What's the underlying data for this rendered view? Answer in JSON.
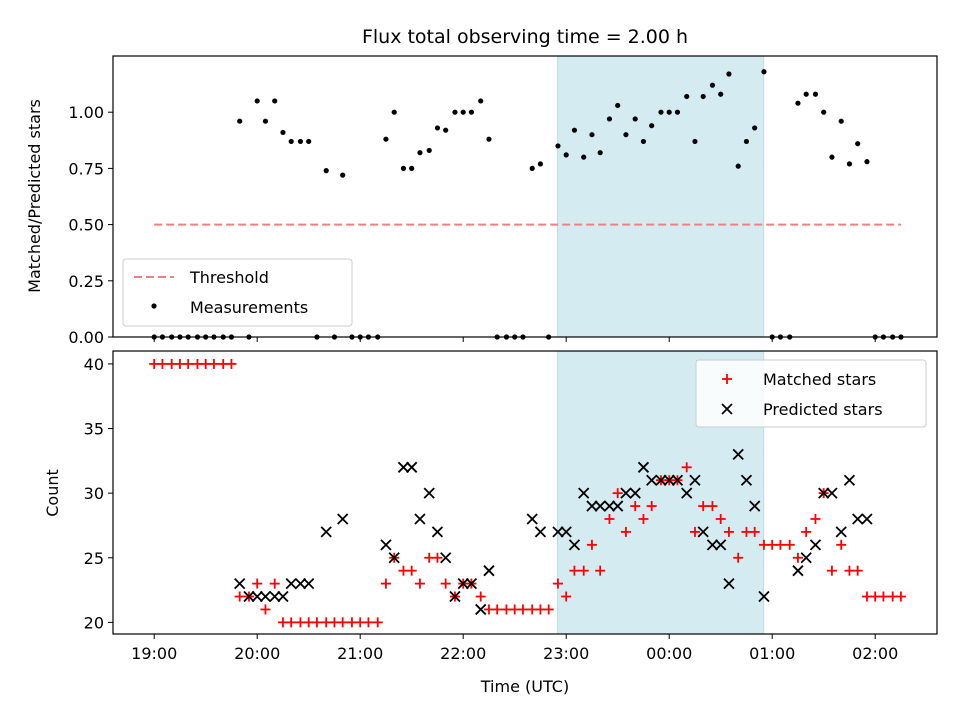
{
  "chart_data": [
    {
      "type": "scatter",
      "title": "Flux total observing time = 2.00 h",
      "xlabel": "",
      "ylabel": "Matched/Predicted stars",
      "x_unit": "hours (UTC, continuing past midnight)",
      "xlim": [
        18.6,
        26.6
      ],
      "ylim": [
        0,
        1.25
      ],
      "yticks": [
        "0.00",
        "0.25",
        "0.50",
        "0.75",
        "1.00"
      ],
      "shaded_span": {
        "start": "22:55",
        "end": "00:55",
        "color": "#d4ebf1"
      },
      "threshold": {
        "name": "Threshold",
        "value": 0.5,
        "x_range": [
          19.0,
          26.25
        ],
        "color": "#f08080"
      },
      "legend": {
        "position": "lower-left",
        "entries": [
          "Threshold",
          "Measurements"
        ]
      },
      "series": [
        {
          "name": "Measurements",
          "color": "#000000",
          "points": [
            [
              19.0,
              0
            ],
            [
              19.08,
              0
            ],
            [
              19.17,
              0
            ],
            [
              19.25,
              0
            ],
            [
              19.33,
              0
            ],
            [
              19.42,
              0
            ],
            [
              19.5,
              0
            ],
            [
              19.58,
              0
            ],
            [
              19.67,
              0
            ],
            [
              19.75,
              0
            ],
            [
              19.83,
              0.96
            ],
            [
              19.92,
              0
            ],
            [
              20.0,
              1.05
            ],
            [
              20.08,
              0.96
            ],
            [
              20.17,
              1.05
            ],
            [
              20.25,
              0.91
            ],
            [
              20.33,
              0.87
            ],
            [
              20.42,
              0.87
            ],
            [
              20.5,
              0.87
            ],
            [
              20.58,
              0
            ],
            [
              20.67,
              0.74
            ],
            [
              20.75,
              0
            ],
            [
              20.83,
              0.72
            ],
            [
              20.92,
              0
            ],
            [
              21.0,
              0
            ],
            [
              21.08,
              0
            ],
            [
              21.17,
              0
            ],
            [
              21.25,
              0.88
            ],
            [
              21.33,
              1.0
            ],
            [
              21.42,
              0.75
            ],
            [
              21.5,
              0.75
            ],
            [
              21.58,
              0.82
            ],
            [
              21.67,
              0.83
            ],
            [
              21.75,
              0.93
            ],
            [
              21.83,
              0.92
            ],
            [
              21.92,
              1.0
            ],
            [
              22.0,
              1.0
            ],
            [
              22.08,
              1.0
            ],
            [
              22.17,
              1.05
            ],
            [
              22.25,
              0.88
            ],
            [
              22.33,
              0
            ],
            [
              22.42,
              0
            ],
            [
              22.5,
              0
            ],
            [
              22.58,
              0
            ],
            [
              22.67,
              0.75
            ],
            [
              22.75,
              0.77
            ],
            [
              22.83,
              0
            ],
            [
              22.92,
              0.85
            ],
            [
              23.0,
              0.81
            ],
            [
              23.08,
              0.92
            ],
            [
              23.17,
              0.8
            ],
            [
              23.25,
              0.9
            ],
            [
              23.33,
              0.82
            ],
            [
              23.42,
              0.97
            ],
            [
              23.5,
              1.03
            ],
            [
              23.58,
              0.9
            ],
            [
              23.67,
              0.97
            ],
            [
              23.75,
              0.87
            ],
            [
              23.83,
              0.94
            ],
            [
              23.92,
              1.0
            ],
            [
              24.0,
              1.0
            ],
            [
              24.08,
              1.0
            ],
            [
              24.17,
              1.07
            ],
            [
              24.25,
              0.87
            ],
            [
              24.33,
              1.07
            ],
            [
              24.42,
              1.12
            ],
            [
              24.5,
              1.08
            ],
            [
              24.58,
              1.17
            ],
            [
              24.67,
              0.76
            ],
            [
              24.75,
              0.87
            ],
            [
              24.83,
              0.93
            ],
            [
              24.92,
              1.18
            ],
            [
              25.0,
              0
            ],
            [
              25.08,
              0
            ],
            [
              25.17,
              0
            ],
            [
              25.25,
              1.04
            ],
            [
              25.33,
              1.08
            ],
            [
              25.42,
              1.08
            ],
            [
              25.5,
              1.0
            ],
            [
              25.58,
              0.8
            ],
            [
              25.67,
              0.96
            ],
            [
              25.75,
              0.77
            ],
            [
              25.83,
              0.86
            ],
            [
              25.92,
              0.78
            ],
            [
              26.0,
              0
            ],
            [
              26.08,
              0
            ],
            [
              26.17,
              0
            ],
            [
              26.25,
              0
            ]
          ]
        }
      ]
    },
    {
      "type": "scatter",
      "title": "",
      "xlabel": "Time (UTC)",
      "ylabel": "Count",
      "x_unit": "hours (UTC, continuing past midnight)",
      "xlim": [
        18.6,
        26.6
      ],
      "ylim": [
        19.1,
        41.0
      ],
      "xticks": [
        {
          "value": 19,
          "label": "19:00"
        },
        {
          "value": 20,
          "label": "20:00"
        },
        {
          "value": 21,
          "label": "21:00"
        },
        {
          "value": 22,
          "label": "22:00"
        },
        {
          "value": 23,
          "label": "23:00"
        },
        {
          "value": 24,
          "label": "00:00"
        },
        {
          "value": 25,
          "label": "01:00"
        },
        {
          "value": 26,
          "label": "02:00"
        }
      ],
      "yticks": [
        "20",
        "25",
        "30",
        "35",
        "40"
      ],
      "shaded_span": {
        "start": "22:55",
        "end": "00:55",
        "color": "#d4ebf1"
      },
      "legend": {
        "position": "top-right",
        "entries": [
          "Matched stars",
          "Predicted stars"
        ]
      },
      "series": [
        {
          "name": "Matched stars",
          "marker": "plus",
          "color": "#ff0000",
          "points": [
            [
              19.0,
              40
            ],
            [
              19.08,
              40
            ],
            [
              19.17,
              40
            ],
            [
              19.25,
              40
            ],
            [
              19.33,
              40
            ],
            [
              19.42,
              40
            ],
            [
              19.5,
              40
            ],
            [
              19.58,
              40
            ],
            [
              19.67,
              40
            ],
            [
              19.75,
              40
            ],
            [
              19.83,
              22
            ],
            [
              19.92,
              22
            ],
            [
              20.0,
              23
            ],
            [
              20.08,
              21
            ],
            [
              20.17,
              23
            ],
            [
              20.25,
              20
            ],
            [
              20.33,
              20
            ],
            [
              20.42,
              20
            ],
            [
              20.5,
              20
            ],
            [
              20.58,
              20
            ],
            [
              20.67,
              20
            ],
            [
              20.75,
              20
            ],
            [
              20.83,
              20
            ],
            [
              20.92,
              20
            ],
            [
              21.0,
              20
            ],
            [
              21.08,
              20
            ],
            [
              21.17,
              20
            ],
            [
              21.25,
              23
            ],
            [
              21.33,
              25
            ],
            [
              21.42,
              24
            ],
            [
              21.5,
              24
            ],
            [
              21.58,
              23
            ],
            [
              21.67,
              25
            ],
            [
              21.75,
              25
            ],
            [
              21.83,
              23
            ],
            [
              21.92,
              22
            ],
            [
              22.0,
              23
            ],
            [
              22.08,
              23
            ],
            [
              22.17,
              22
            ],
            [
              22.25,
              21
            ],
            [
              22.33,
              21
            ],
            [
              22.42,
              21
            ],
            [
              22.5,
              21
            ],
            [
              22.58,
              21
            ],
            [
              22.67,
              21
            ],
            [
              22.75,
              21
            ],
            [
              22.83,
              21
            ],
            [
              22.92,
              23
            ],
            [
              23.0,
              22
            ],
            [
              23.08,
              24
            ],
            [
              23.17,
              24
            ],
            [
              23.25,
              26
            ],
            [
              23.33,
              24
            ],
            [
              23.42,
              28
            ],
            [
              23.5,
              30
            ],
            [
              23.58,
              27
            ],
            [
              23.67,
              29
            ],
            [
              23.75,
              28
            ],
            [
              23.83,
              29
            ],
            [
              23.92,
              31
            ],
            [
              24.0,
              31
            ],
            [
              24.08,
              31
            ],
            [
              24.17,
              32
            ],
            [
              24.25,
              27
            ],
            [
              24.33,
              29
            ],
            [
              24.42,
              29
            ],
            [
              24.5,
              28
            ],
            [
              24.58,
              27
            ],
            [
              24.67,
              25
            ],
            [
              24.75,
              27
            ],
            [
              24.83,
              27
            ],
            [
              24.92,
              26
            ],
            [
              25.0,
              26
            ],
            [
              25.08,
              26
            ],
            [
              25.17,
              26
            ],
            [
              25.25,
              25
            ],
            [
              25.33,
              27
            ],
            [
              25.42,
              28
            ],
            [
              25.5,
              30
            ],
            [
              25.58,
              24
            ],
            [
              25.67,
              26
            ],
            [
              25.75,
              24
            ],
            [
              25.83,
              24
            ],
            [
              25.92,
              22
            ],
            [
              26.0,
              22
            ],
            [
              26.08,
              22
            ],
            [
              26.17,
              22
            ],
            [
              26.25,
              22
            ]
          ]
        },
        {
          "name": "Predicted stars",
          "marker": "x",
          "color": "#000000",
          "points": [
            [
              19.83,
              23
            ],
            [
              19.92,
              22
            ],
            [
              20.0,
              22
            ],
            [
              20.08,
              22
            ],
            [
              20.17,
              22
            ],
            [
              20.25,
              22
            ],
            [
              20.33,
              23
            ],
            [
              20.42,
              23
            ],
            [
              20.5,
              23
            ],
            [
              20.67,
              27
            ],
            [
              20.83,
              28
            ],
            [
              21.25,
              26
            ],
            [
              21.33,
              25
            ],
            [
              21.42,
              32
            ],
            [
              21.5,
              32
            ],
            [
              21.58,
              28
            ],
            [
              21.67,
              30
            ],
            [
              21.75,
              27
            ],
            [
              21.83,
              25
            ],
            [
              21.92,
              22
            ],
            [
              22.0,
              23
            ],
            [
              22.08,
              23
            ],
            [
              22.17,
              21
            ],
            [
              22.25,
              24
            ],
            [
              22.67,
              28
            ],
            [
              22.75,
              27
            ],
            [
              22.92,
              27
            ],
            [
              23.0,
              27
            ],
            [
              23.08,
              26
            ],
            [
              23.17,
              30
            ],
            [
              23.25,
              29
            ],
            [
              23.33,
              29
            ],
            [
              23.42,
              29
            ],
            [
              23.5,
              29
            ],
            [
              23.58,
              30
            ],
            [
              23.67,
              30
            ],
            [
              23.75,
              32
            ],
            [
              23.83,
              31
            ],
            [
              23.92,
              31
            ],
            [
              24.0,
              31
            ],
            [
              24.08,
              31
            ],
            [
              24.17,
              30
            ],
            [
              24.25,
              31
            ],
            [
              24.33,
              27
            ],
            [
              24.42,
              26
            ],
            [
              24.5,
              26
            ],
            [
              24.58,
              23
            ],
            [
              24.67,
              33
            ],
            [
              24.75,
              31
            ],
            [
              24.83,
              29
            ],
            [
              24.92,
              22
            ],
            [
              25.25,
              24
            ],
            [
              25.33,
              25
            ],
            [
              25.42,
              26
            ],
            [
              25.5,
              30
            ],
            [
              25.58,
              30
            ],
            [
              25.67,
              27
            ],
            [
              25.75,
              31
            ],
            [
              25.83,
              28
            ],
            [
              25.92,
              28
            ]
          ]
        }
      ]
    }
  ]
}
